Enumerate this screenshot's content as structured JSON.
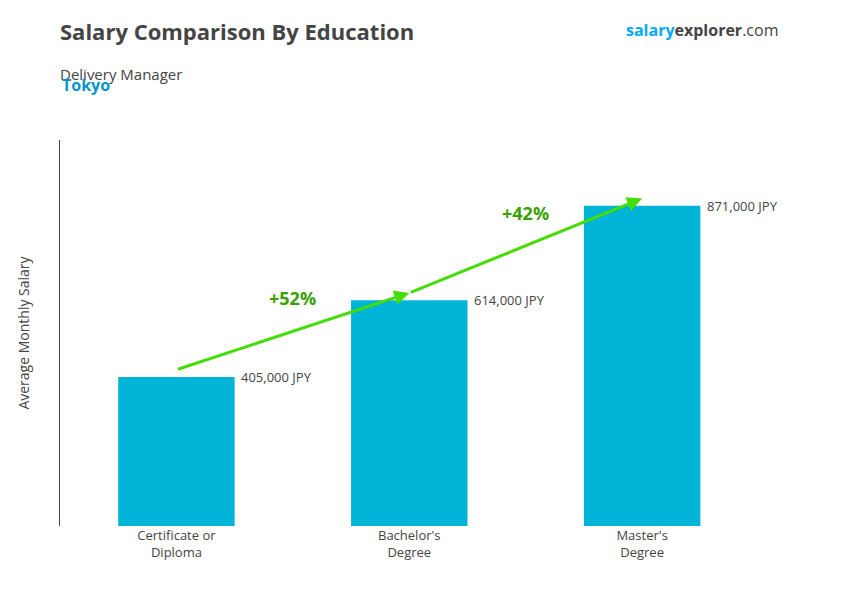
{
  "chart_data": {
    "type": "bar",
    "title": "Salary Comparison By Education",
    "subtitle": "Delivery Manager",
    "ylabel": "Average Monthly Salary",
    "annotations": [
      "Tokyo",
      "salary",
      "explorer",
      ".com",
      "+52%",
      "+42%"
    ],
    "categories": [
      "Certificate or\nDiploma",
      "Bachelor's\nDegree",
      "Master's\nDegree"
    ],
    "values": [
      405000,
      614000,
      871000
    ],
    "value_labels": [
      "405,000 JPY",
      "614,000 JPY",
      "871,000 JPY"
    ],
    "data_labels": true,
    "color": "#00B4D8",
    "ylim": [
      0,
      1050000
    ],
    "yticks": [],
    "grid": false,
    "tick_labels": "x"
  }
}
